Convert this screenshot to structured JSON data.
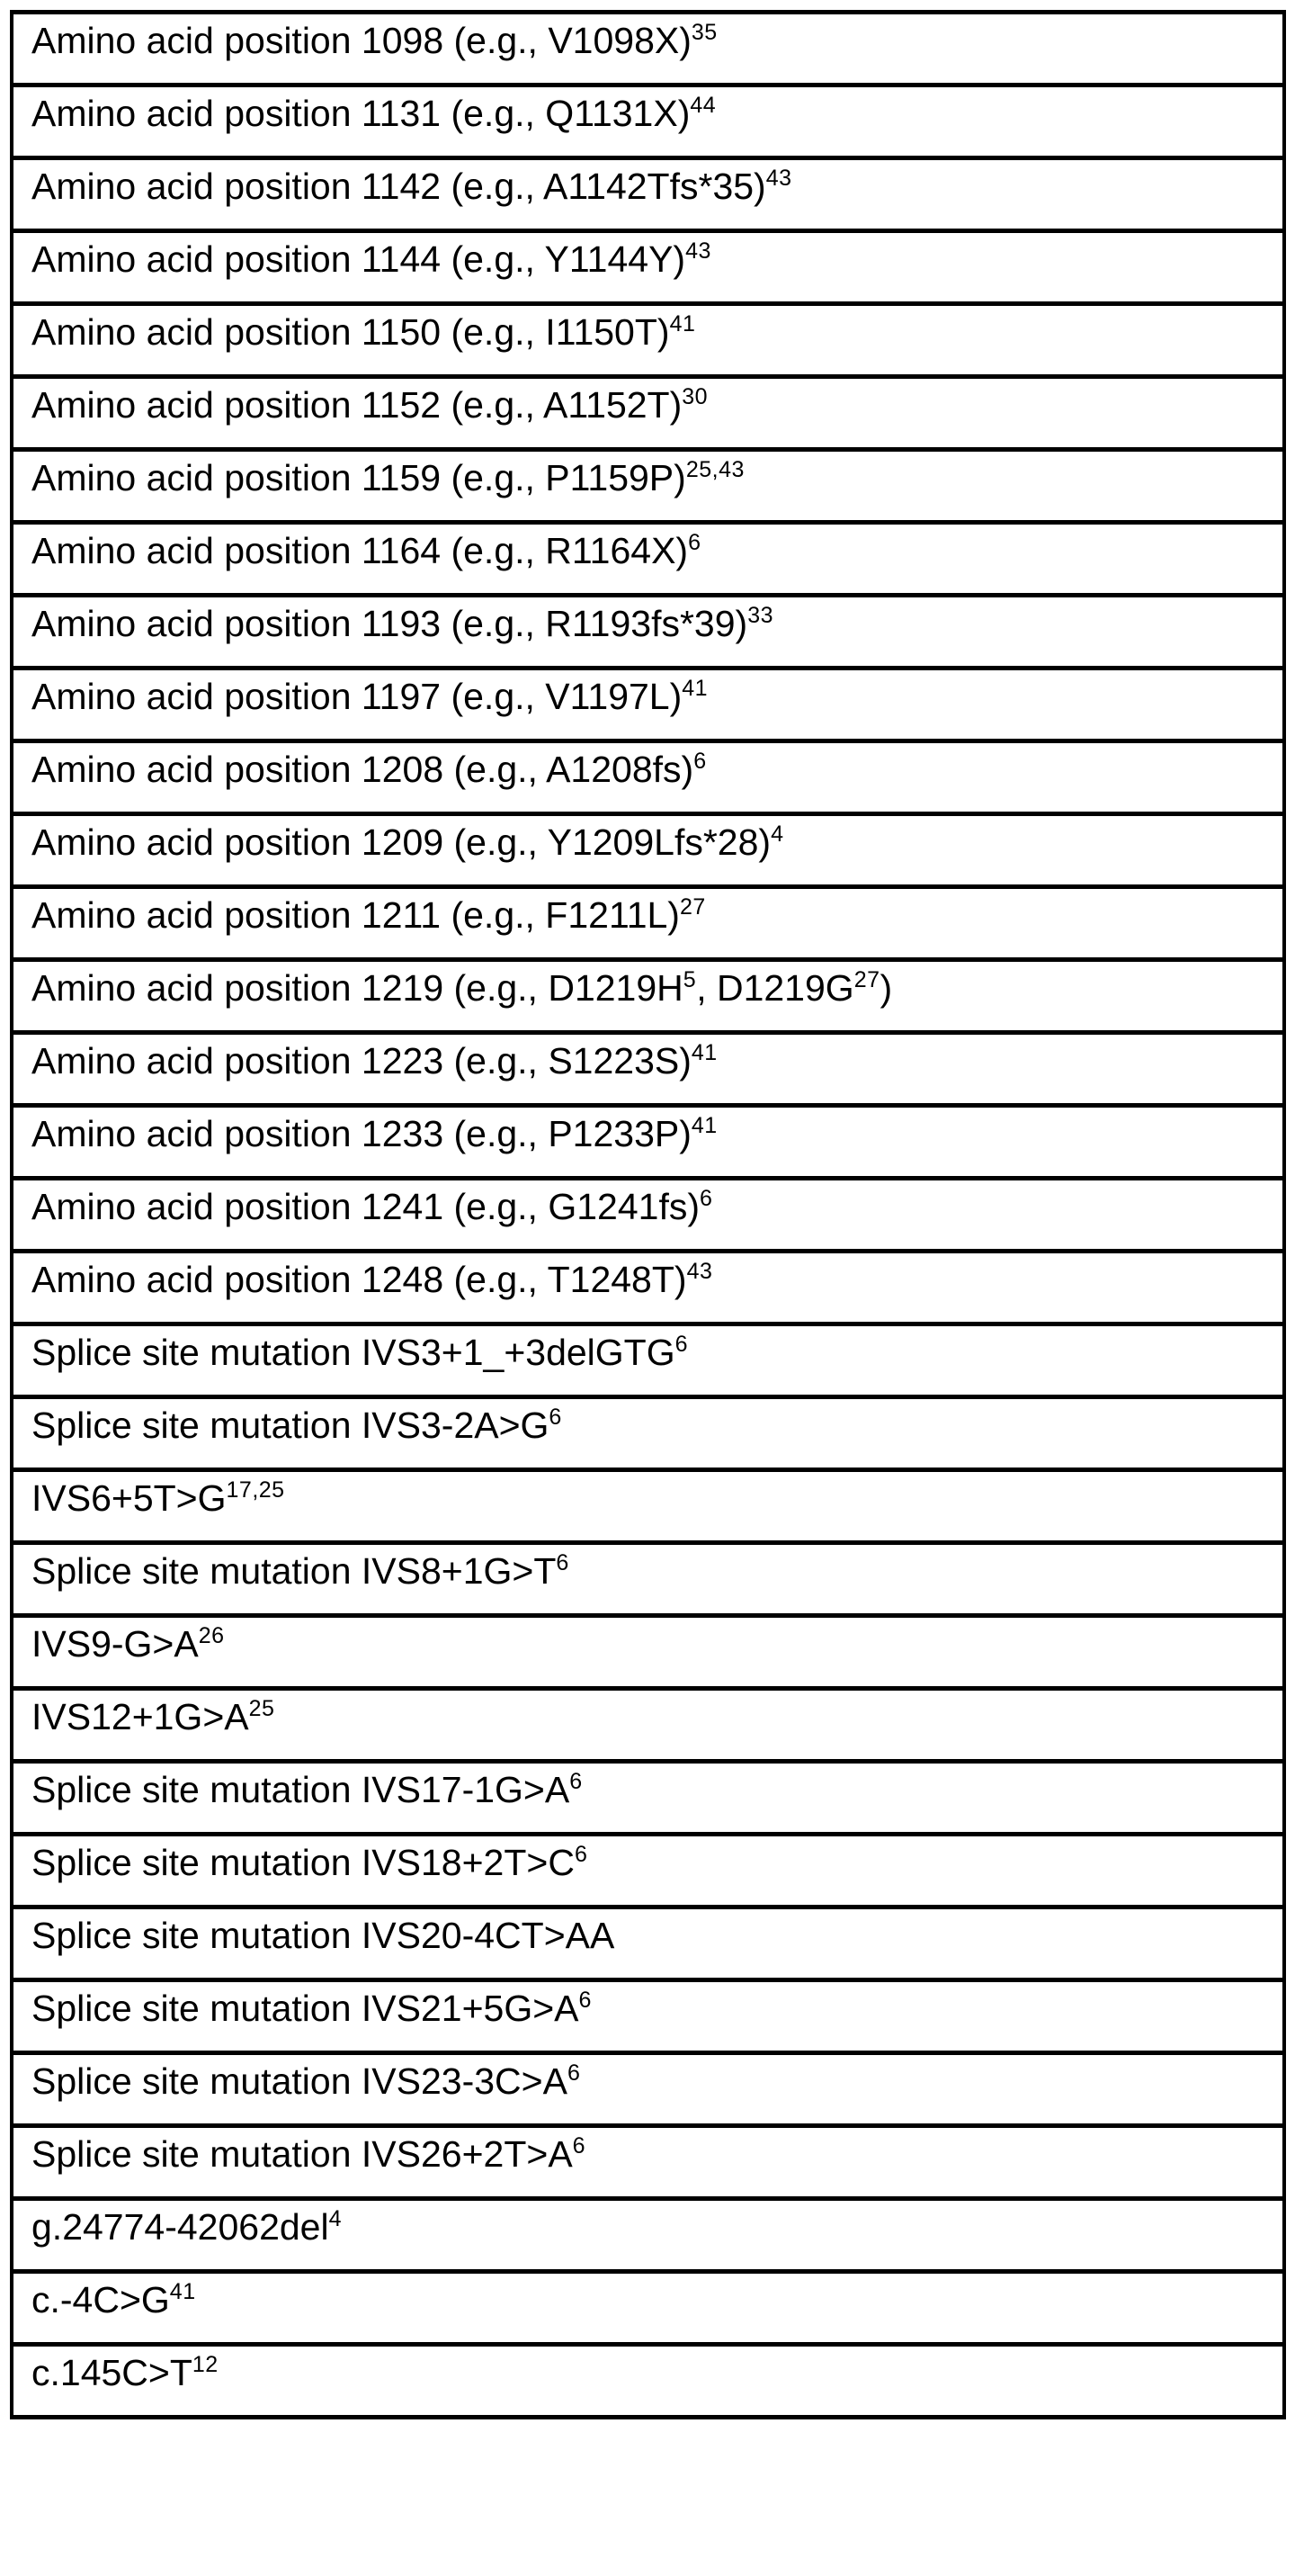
{
  "colors": {
    "background": "#ffffff",
    "text": "#000000",
    "border": "#000000"
  },
  "table": {
    "name": "mutation-table",
    "rows": [
      {
        "segments": [
          {
            "text": "Amino acid position 1098 (e.g., V1098X)"
          },
          {
            "sup": "35"
          }
        ]
      },
      {
        "segments": [
          {
            "text": "Amino acid position 1131 (e.g., Q1131X)"
          },
          {
            "sup": "44"
          }
        ]
      },
      {
        "segments": [
          {
            "text": "Amino acid position 1142 (e.g., A1142Tfs*35)"
          },
          {
            "sup": "43"
          }
        ]
      },
      {
        "segments": [
          {
            "text": "Amino acid position 1144 (e.g., Y1144Y)"
          },
          {
            "sup": "43"
          }
        ]
      },
      {
        "segments": [
          {
            "text": "Amino acid position 1150 (e.g., I1150T)"
          },
          {
            "sup": "41"
          }
        ]
      },
      {
        "segments": [
          {
            "text": "Amino acid position 1152 (e.g., A1152T)"
          },
          {
            "sup": "30"
          }
        ]
      },
      {
        "segments": [
          {
            "text": "Amino acid position 1159 (e.g., P1159P)"
          },
          {
            "sup": "25,43"
          }
        ]
      },
      {
        "segments": [
          {
            "text": "Amino acid position 1164 (e.g., R1164X)"
          },
          {
            "sup": "6"
          }
        ]
      },
      {
        "segments": [
          {
            "text": "Amino acid position 1193 (e.g., R1193fs*39)"
          },
          {
            "sup": "33"
          }
        ]
      },
      {
        "segments": [
          {
            "text": "Amino acid position 1197 (e.g., V1197L)"
          },
          {
            "sup": "41"
          }
        ]
      },
      {
        "segments": [
          {
            "text": "Amino acid position 1208 (e.g., A1208fs)"
          },
          {
            "sup": "6"
          }
        ]
      },
      {
        "segments": [
          {
            "text": "Amino acid position 1209 (e.g., Y1209Lfs*28)"
          },
          {
            "sup": "4"
          }
        ]
      },
      {
        "segments": [
          {
            "text": "Amino acid position 1211 (e.g., F1211L)"
          },
          {
            "sup": "27"
          }
        ]
      },
      {
        "segments": [
          {
            "text": "Amino acid position 1219 (e.g., D1219H"
          },
          {
            "sup": "5"
          },
          {
            "text": ", D1219G"
          },
          {
            "sup": "27"
          },
          {
            "text": ")"
          }
        ]
      },
      {
        "segments": [
          {
            "text": "Amino acid position 1223 (e.g., S1223S)"
          },
          {
            "sup": "41"
          }
        ]
      },
      {
        "segments": [
          {
            "text": "Amino acid position 1233 (e.g., P1233P)"
          },
          {
            "sup": "41"
          }
        ]
      },
      {
        "segments": [
          {
            "text": "Amino acid position 1241 (e.g., G1241fs)"
          },
          {
            "sup": "6"
          }
        ]
      },
      {
        "segments": [
          {
            "text": "Amino acid position 1248 (e.g., T1248T)"
          },
          {
            "sup": "43"
          }
        ]
      },
      {
        "segments": [
          {
            "text": "Splice site mutation IVS3+1_+3delGTG"
          },
          {
            "sup": "6"
          }
        ]
      },
      {
        "segments": [
          {
            "text": "Splice site mutation IVS3-2A>G"
          },
          {
            "sup": "6"
          }
        ]
      },
      {
        "segments": [
          {
            "text": "IVS6+5T>G"
          },
          {
            "sup": "17,25"
          }
        ]
      },
      {
        "segments": [
          {
            "text": "Splice site mutation IVS8+1G>T"
          },
          {
            "sup": "6"
          }
        ]
      },
      {
        "segments": [
          {
            "text": "IVS9-G>A"
          },
          {
            "sup": "26"
          }
        ]
      },
      {
        "segments": [
          {
            "text": "IVS12+1G>A"
          },
          {
            "sup": "25"
          }
        ]
      },
      {
        "segments": [
          {
            "text": "Splice site mutation IVS17-1G>A"
          },
          {
            "sup": "6"
          }
        ]
      },
      {
        "segments": [
          {
            "text": "Splice site mutation IVS18+2T>C"
          },
          {
            "sup": "6"
          }
        ]
      },
      {
        "segments": [
          {
            "text": "Splice site mutation IVS20-4CT>AA"
          }
        ]
      },
      {
        "segments": [
          {
            "text": "Splice site mutation IVS21+5G>A"
          },
          {
            "sup": "6"
          }
        ]
      },
      {
        "segments": [
          {
            "text": "Splice site mutation IVS23-3C>A"
          },
          {
            "sup": "6"
          }
        ]
      },
      {
        "segments": [
          {
            "text": "Splice site mutation IVS26+2T>A"
          },
          {
            "sup": "6"
          }
        ]
      },
      {
        "segments": [
          {
            "text": "g.24774-42062del"
          },
          {
            "sup": "4"
          }
        ]
      },
      {
        "segments": [
          {
            "text": "c.-4C>G"
          },
          {
            "sup": "41"
          }
        ]
      },
      {
        "segments": [
          {
            "text": "c.145C>T"
          },
          {
            "sup": "12"
          }
        ]
      }
    ]
  }
}
